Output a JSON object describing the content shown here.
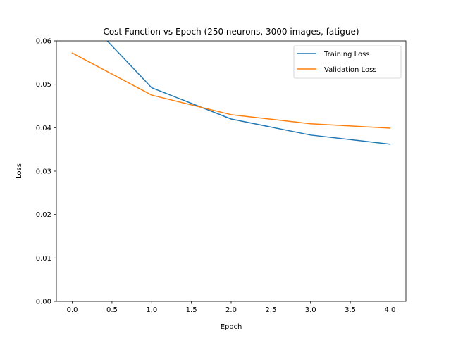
{
  "chart_data": {
    "type": "line",
    "title": "Cost Function vs Epoch (250 neurons, 3000 images, fatigue)",
    "xlabel": "Epoch",
    "ylabel": "Loss",
    "xlim": [
      -0.2,
      4.2
    ],
    "ylim": [
      0.0,
      0.06
    ],
    "xticks": [
      0.0,
      0.5,
      1.0,
      1.5,
      2.0,
      2.5,
      3.0,
      3.5,
      4.0
    ],
    "xtick_labels": [
      "0.0",
      "0.5",
      "1.0",
      "1.5",
      "2.0",
      "2.5",
      "3.0",
      "3.5",
      "4.0"
    ],
    "yticks": [
      0.0,
      0.01,
      0.02,
      0.03,
      0.04,
      0.05,
      0.06
    ],
    "ytick_labels": [
      "0.00",
      "0.01",
      "0.02",
      "0.03",
      "0.04",
      "0.05",
      "0.06"
    ],
    "grid": false,
    "legend_position": "upper right",
    "x": [
      0,
      1,
      2,
      3,
      4
    ],
    "series": [
      {
        "name": "Training Loss",
        "color": "#1f77b4",
        "values": [
          0.0685,
          0.0492,
          0.042,
          0.0383,
          0.0362
        ]
      },
      {
        "name": "Validation Loss",
        "color": "#ff7f0e",
        "values": [
          0.0572,
          0.0475,
          0.043,
          0.0409,
          0.0399
        ]
      }
    ]
  }
}
